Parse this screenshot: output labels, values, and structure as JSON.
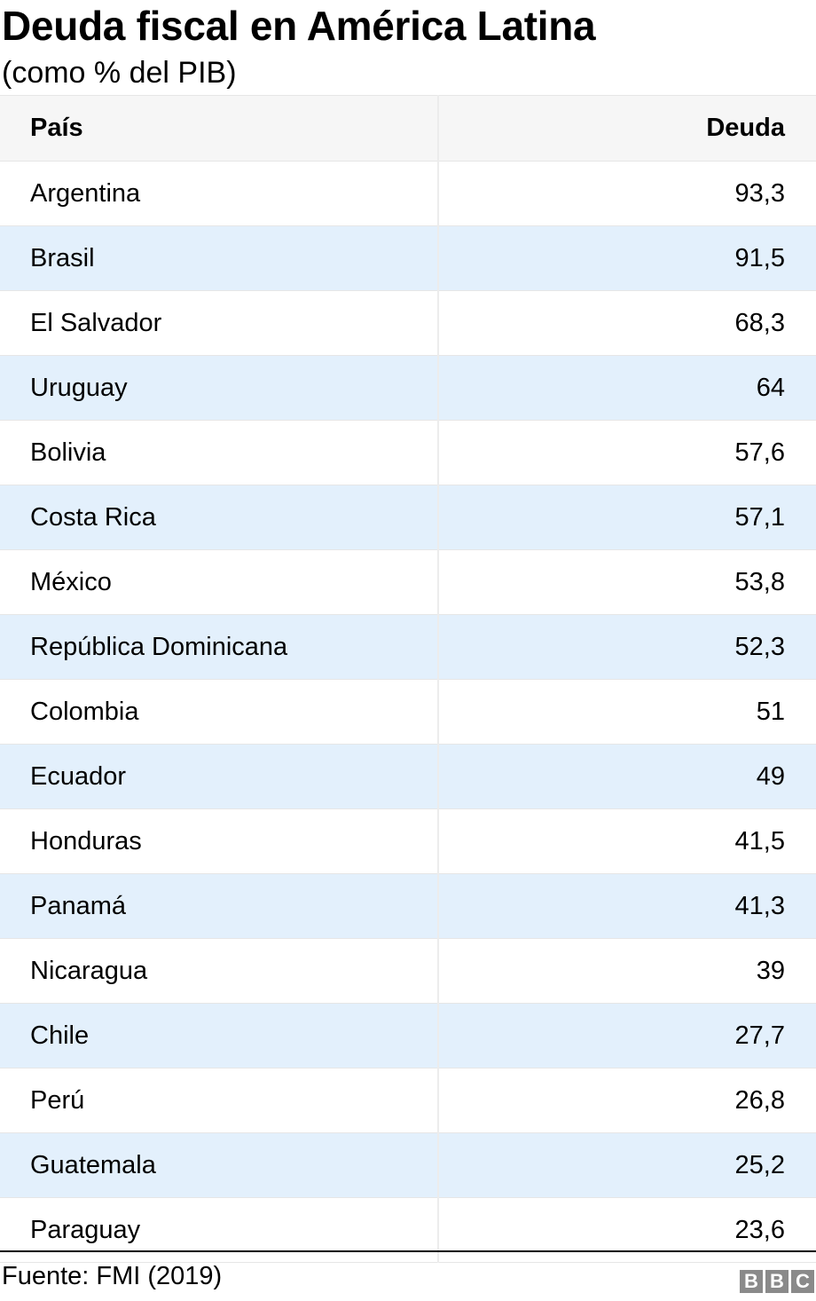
{
  "chart_data": {
    "type": "table",
    "title": "Deuda fiscal en América Latina",
    "subtitle": "(como % del PIB)",
    "columns": [
      "País",
      "Deuda"
    ],
    "rows": [
      {
        "country": "Argentina",
        "value": "93,3"
      },
      {
        "country": "Brasil",
        "value": "91,5"
      },
      {
        "country": "El Salvador",
        "value": "68,3"
      },
      {
        "country": "Uruguay",
        "value": "64"
      },
      {
        "country": "Bolivia",
        "value": "57,6"
      },
      {
        "country": "Costa Rica",
        "value": "57,1"
      },
      {
        "country": "México",
        "value": "53,8"
      },
      {
        "country": "República Dominicana",
        "value": "52,3"
      },
      {
        "country": "Colombia",
        "value": "51"
      },
      {
        "country": "Ecuador",
        "value": "49"
      },
      {
        "country": "Honduras",
        "value": "41,5"
      },
      {
        "country": "Panamá",
        "value": "41,3"
      },
      {
        "country": "Nicaragua",
        "value": "39"
      },
      {
        "country": "Chile",
        "value": "27,7"
      },
      {
        "country": "Perú",
        "value": "26,8"
      },
      {
        "country": "Guatemala",
        "value": "25,2"
      },
      {
        "country": "Paraguay",
        "value": "23,6"
      }
    ],
    "source": "Fuente: FMI (2019)",
    "stripe_color": "#e3f0fc",
    "header_color": "#f6f6f6"
  },
  "logo": {
    "letters": [
      "B",
      "B",
      "C"
    ],
    "color": "#8a8a8a"
  }
}
